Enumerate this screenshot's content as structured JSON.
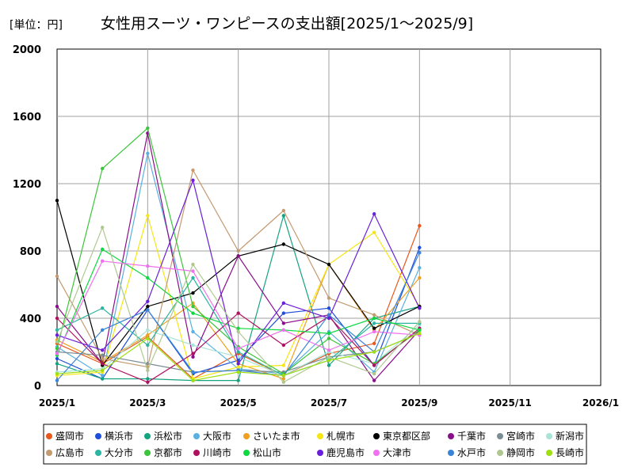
{
  "chart_data": {
    "type": "line",
    "title_unit": "[単位：円]",
    "title": "女性用スーツ・ワンピースの支出額[2025/1～2025/9]",
    "xlabel": "",
    "ylabel": "",
    "x": [
      "2025/1",
      "2025/2",
      "2025/3",
      "2025/4",
      "2025/5",
      "2025/6",
      "2025/7",
      "2025/8",
      "2025/9"
    ],
    "x_ticks": [
      "2025/1",
      "2025/3",
      "2025/5",
      "2025/7",
      "2025/9",
      "2025/11",
      "2026/1"
    ],
    "y_ticks": [
      0,
      400,
      800,
      1200,
      1600,
      2000
    ],
    "ylim": [
      0,
      2000
    ],
    "grid": true,
    "legend_position": "bottom",
    "series": [
      {
        "name": "盛岡市",
        "color": "#e8571c",
        "values": [
          250,
          130,
          290,
          40,
          190,
          60,
          190,
          250,
          950
        ]
      },
      {
        "name": "横浜市",
        "color": "#1f4fd8",
        "values": [
          160,
          40,
          450,
          70,
          150,
          430,
          460,
          120,
          820
        ]
      },
      {
        "name": "浜松市",
        "color": "#14a37f",
        "values": [
          130,
          40,
          40,
          30,
          30,
          1010,
          120,
          400,
          470
        ]
      },
      {
        "name": "大阪市",
        "color": "#5ab0e0",
        "values": [
          230,
          60,
          1380,
          320,
          100,
          70,
          320,
          80,
          700
        ]
      },
      {
        "name": "さいたま市",
        "color": "#f0a020",
        "values": [
          270,
          140,
          300,
          490,
          130,
          40,
          720,
          330,
          640
        ]
      },
      {
        "name": "札幌市",
        "color": "#f5e614",
        "values": [
          60,
          80,
          1010,
          40,
          110,
          120,
          720,
          910,
          470
        ]
      },
      {
        "name": "東京都区部",
        "color": "#000000",
        "values": [
          1100,
          120,
          470,
          550,
          770,
          840,
          720,
          340,
          470
        ]
      },
      {
        "name": "千葉市",
        "color": "#8a0f8a",
        "values": [
          470,
          130,
          1500,
          170,
          770,
          370,
          420,
          30,
          330
        ]
      },
      {
        "name": "宮崎市",
        "color": "#7a8c94",
        "values": [
          200,
          180,
          130,
          80,
          90,
          80,
          170,
          200,
          310
        ]
      },
      {
        "name": "新潟市",
        "color": "#a8e4d8",
        "values": [
          80,
          100,
          330,
          240,
          170,
          60,
          200,
          130,
          360
        ]
      },
      {
        "name": "広島市",
        "color": "#c49a70",
        "values": [
          650,
          160,
          110,
          1280,
          800,
          1040,
          520,
          420,
          300
        ]
      },
      {
        "name": "大分市",
        "color": "#2cb5a0",
        "values": [
          330,
          460,
          240,
          640,
          200,
          60,
          150,
          370,
          370
        ]
      },
      {
        "name": "京都市",
        "color": "#3cc43c",
        "values": [
          220,
          1290,
          1530,
          470,
          230,
          70,
          280,
          130,
          330
        ]
      },
      {
        "name": "川崎市",
        "color": "#b01060",
        "values": [
          400,
          130,
          20,
          190,
          430,
          240,
          410,
          120,
          340
        ]
      },
      {
        "name": "松山市",
        "color": "#0fd840",
        "values": [
          180,
          810,
          640,
          430,
          340,
          330,
          310,
          400,
          330
        ]
      },
      {
        "name": "鹿児島市",
        "color": "#6a1fd8",
        "values": [
          300,
          210,
          500,
          1220,
          130,
          490,
          400,
          1020,
          460
        ]
      },
      {
        "name": "大津市",
        "color": "#f070f0",
        "values": [
          190,
          740,
          710,
          680,
          220,
          330,
          210,
          320,
          300
        ]
      },
      {
        "name": "水戸市",
        "color": "#3a84d8",
        "values": [
          30,
          330,
          450,
          80,
          90,
          60,
          420,
          200,
          790
        ]
      },
      {
        "name": "静岡市",
        "color": "#b0c890",
        "values": [
          260,
          940,
          90,
          720,
          320,
          20,
          170,
          70,
          380
        ]
      },
      {
        "name": "長崎市",
        "color": "#a0e010",
        "values": [
          70,
          90,
          280,
          30,
          80,
          60,
          150,
          200,
          310
        ]
      }
    ]
  }
}
